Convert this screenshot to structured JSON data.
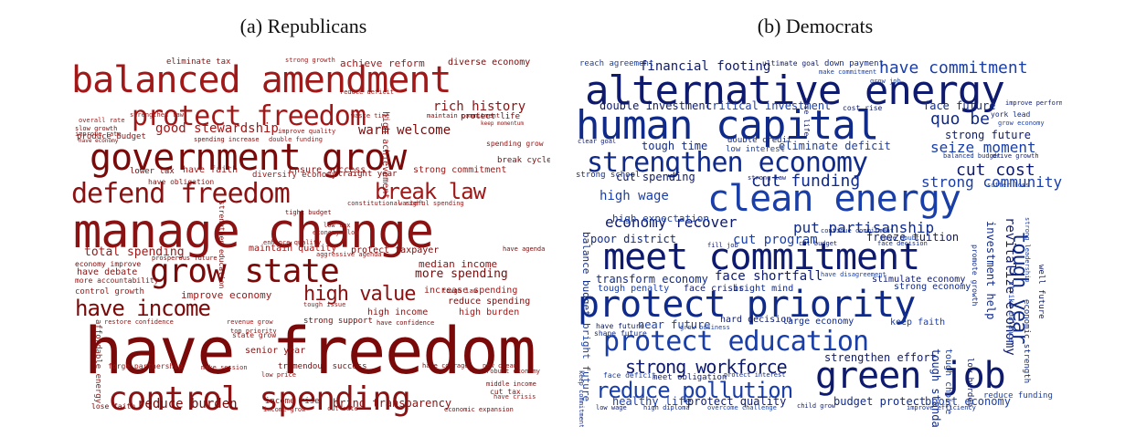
{
  "captions": {
    "republicans": "(a) Republicans",
    "democrats": "(b) Democrats"
  },
  "colors": {
    "republicans": [
      "#7a0a0a",
      "#8b1212",
      "#a01818"
    ],
    "democrats": [
      "#0e1a6e",
      "#102a8a",
      "#1a3ea8"
    ]
  },
  "clouds": {
    "republicans": [
      {
        "t": "have freedom"
      },
      {
        "t": "manage change"
      },
      {
        "t": "balanced amendment"
      },
      {
        "t": "government grow"
      },
      {
        "t": "control spending"
      },
      {
        "t": "protect freedom"
      },
      {
        "t": "grow state"
      },
      {
        "t": "defend freedom"
      },
      {
        "t": "break law"
      },
      {
        "t": "have income"
      },
      {
        "t": "high value"
      },
      {
        "t": "good stewardship"
      },
      {
        "t": "warm welcome"
      },
      {
        "t": "rich history"
      },
      {
        "t": "total spending"
      },
      {
        "t": "more spending"
      },
      {
        "t": "median income"
      },
      {
        "t": "improve economy"
      },
      {
        "t": "reduce burden"
      },
      {
        "t": "bring transparency"
      },
      {
        "t": "achieve reform"
      },
      {
        "t": "diverse economy"
      },
      {
        "t": "eliminate tax"
      },
      {
        "t": "strong growth"
      },
      {
        "t": "protect life"
      },
      {
        "t": "produce budget"
      },
      {
        "t": "have faith"
      },
      {
        "t": "lower tax"
      },
      {
        "t": "ensure success"
      },
      {
        "t": "strong commitment"
      },
      {
        "t": "break cycle"
      },
      {
        "t": "spending grow"
      },
      {
        "t": "maintain quality"
      },
      {
        "t": "protect taxpayer"
      },
      {
        "t": "have debate"
      },
      {
        "t": "control growth"
      },
      {
        "t": "economy improve"
      },
      {
        "t": "more accountability"
      },
      {
        "t": "increase spending"
      },
      {
        "t": "reduce spending"
      },
      {
        "t": "high income"
      },
      {
        "t": "high burden"
      },
      {
        "t": "strong support"
      },
      {
        "t": "senior year"
      },
      {
        "t": "state grow"
      },
      {
        "t": "tremendous success"
      },
      {
        "t": "income rise"
      },
      {
        "t": "income grow"
      },
      {
        "t": "economic expansion"
      },
      {
        "t": "cut tax"
      },
      {
        "t": "have crisis"
      },
      {
        "t": "middle income"
      },
      {
        "t": "robust economy"
      },
      {
        "t": "forge partnership"
      },
      {
        "t": "lose faith"
      },
      {
        "t": "low price"
      },
      {
        "t": "make session"
      },
      {
        "t": "have courage"
      },
      {
        "t": "affordable energy"
      },
      {
        "t": "high achievement"
      },
      {
        "t": "strengthen education"
      },
      {
        "t": "constitutional right"
      },
      {
        "t": "wasteful spending"
      },
      {
        "t": "tight budget"
      },
      {
        "t": "low tax"
      },
      {
        "t": "economy slow"
      },
      {
        "t": "have agenda"
      },
      {
        "t": "enhance quality"
      },
      {
        "t": "aggressive agenda"
      },
      {
        "t": "prosperous future"
      },
      {
        "t": "top priority"
      },
      {
        "t": "revenue grow"
      },
      {
        "t": "have confidence"
      },
      {
        "t": "restore confidence"
      },
      {
        "t": "diversify economy"
      },
      {
        "t": "straight year"
      },
      {
        "t": "have obligation"
      },
      {
        "t": "waste time"
      },
      {
        "t": "maintain commitment"
      },
      {
        "t": "improve quality"
      },
      {
        "t": "double funding"
      },
      {
        "t": "spending increase"
      },
      {
        "t": "reduce deficit"
      },
      {
        "t": "overall rate"
      },
      {
        "t": "slow growth"
      },
      {
        "t": "improve rate"
      },
      {
        "t": "strengthen law"
      },
      {
        "t": "have economy"
      },
      {
        "t": "keep momentum"
      },
      {
        "t": "tough issue"
      },
      {
        "t": "tough law"
      },
      {
        "t": "new clean"
      },
      {
        "t": "cut rate"
      }
    ],
    "democrats": [
      {
        "t": "alternative energy"
      },
      {
        "t": "human capital"
      },
      {
        "t": "clean energy"
      },
      {
        "t": "meet commitment"
      },
      {
        "t": "protect priority"
      },
      {
        "t": "protect education"
      },
      {
        "t": "green job"
      },
      {
        "t": "strengthen economy"
      },
      {
        "t": "reduce pollution"
      },
      {
        "t": "strong workforce"
      },
      {
        "t": "tough year"
      },
      {
        "t": "have commitment"
      },
      {
        "t": "financial footing"
      },
      {
        "t": "quo be"
      },
      {
        "t": "seize moment"
      },
      {
        "t": "cut cost"
      },
      {
        "t": "cut funding"
      },
      {
        "t": "strong community"
      },
      {
        "t": "economy recover"
      },
      {
        "t": "put partisanship"
      },
      {
        "t": "high wage"
      },
      {
        "t": "face shortfall"
      },
      {
        "t": "transform economy"
      },
      {
        "t": "cut program"
      },
      {
        "t": "freeze tuition"
      },
      {
        "t": "poor district"
      },
      {
        "t": "high expectation"
      },
      {
        "t": "strong future"
      },
      {
        "t": "face future"
      },
      {
        "t": "critical investment"
      },
      {
        "t": "double investment"
      },
      {
        "t": "tough time"
      },
      {
        "t": "eliminate deficit"
      },
      {
        "t": "cut spending"
      },
      {
        "t": "strong school"
      },
      {
        "t": "near future"
      },
      {
        "t": "hard decision"
      },
      {
        "t": "large economy"
      },
      {
        "t": "keep faith"
      },
      {
        "t": "stimulate economy"
      },
      {
        "t": "strong economy"
      },
      {
        "t": "tough penalty"
      },
      {
        "t": "face crisis"
      },
      {
        "t": "bright mind"
      },
      {
        "t": "healthy life"
      },
      {
        "t": "protect quality"
      },
      {
        "t": "budget protect"
      },
      {
        "t": "boost economy"
      },
      {
        "t": "strengthen effort"
      },
      {
        "t": "tough standard"
      },
      {
        "t": "tough choice"
      },
      {
        "t": "revitalize economy"
      },
      {
        "t": "investment help"
      },
      {
        "t": "reach agreement"
      },
      {
        "t": "ultimate goal"
      },
      {
        "t": "down payment"
      },
      {
        "t": "make commitment"
      },
      {
        "t": "clear goal"
      },
      {
        "t": "double credit"
      },
      {
        "t": "low interest"
      },
      {
        "t": "cost rise"
      },
      {
        "t": "york lead"
      },
      {
        "t": "grow economy"
      },
      {
        "t": "drive growth"
      },
      {
        "t": "balanced budget"
      },
      {
        "t": "suffer loss"
      },
      {
        "t": "strong law"
      },
      {
        "t": "continue commitment"
      },
      {
        "t": "have doubt"
      },
      {
        "t": "cut budget"
      },
      {
        "t": "face decision"
      },
      {
        "t": "have disagreement"
      },
      {
        "t": "meet obligation"
      },
      {
        "t": "protect interest"
      },
      {
        "t": "face deficit"
      },
      {
        "t": "low wage"
      },
      {
        "t": "high diploma"
      },
      {
        "t": "overcome challenge"
      },
      {
        "t": "child grow"
      },
      {
        "t": "improve efficiency"
      },
      {
        "t": "reduce funding"
      },
      {
        "t": "have future"
      },
      {
        "t": "shape future"
      },
      {
        "t": "grow business"
      },
      {
        "t": "fill job"
      },
      {
        "t": "balance budget"
      },
      {
        "t": "bright future"
      },
      {
        "t": "lose life"
      },
      {
        "t": "promote growth"
      },
      {
        "t": "strike balance"
      },
      {
        "t": "well future"
      },
      {
        "t": "economic strength"
      },
      {
        "t": "strong leadership"
      },
      {
        "t": "improve performance"
      },
      {
        "t": "keep commitment"
      },
      {
        "t": "grow job"
      },
      {
        "t": "low burden"
      }
    ]
  }
}
